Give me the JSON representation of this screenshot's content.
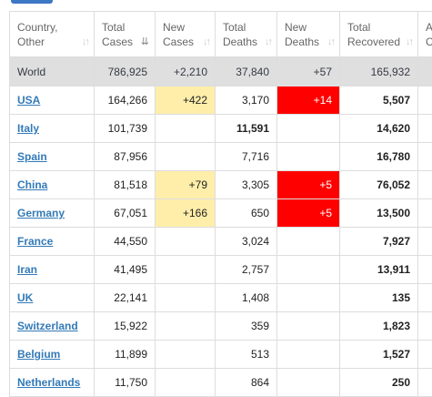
{
  "colors": {
    "new_cases_highlight": "#ffeeaa",
    "new_deaths_highlight": "#ff0000",
    "link": "#337ab7",
    "world_row_bg": "#dfdfdf"
  },
  "headers": {
    "country": [
      "Country,",
      "Other"
    ],
    "total_cases": [
      "Total",
      "Cases"
    ],
    "new_cases": [
      "New",
      "Cases"
    ],
    "total_deaths": [
      "Total",
      "Deaths"
    ],
    "new_deaths": [
      "New",
      "Deaths"
    ],
    "total_recovered": [
      "Total",
      "Recovered"
    ],
    "extra": [
      "A",
      "C"
    ]
  },
  "world": {
    "country": "World",
    "total_cases": "786,925",
    "new_cases": "+2,210",
    "total_deaths": "37,840",
    "new_deaths": "+57",
    "total_recovered": "165,932"
  },
  "rows": [
    {
      "country": "USA",
      "total_cases": "164,266",
      "new_cases": "+422",
      "total_deaths": "3,170",
      "new_deaths": "+14",
      "total_recovered": "5,507"
    },
    {
      "country": "Italy",
      "total_cases": "101,739",
      "new_cases": "",
      "total_deaths": "11,591",
      "new_deaths": "",
      "total_recovered": "14,620"
    },
    {
      "country": "Spain",
      "total_cases": "87,956",
      "new_cases": "",
      "total_deaths": "7,716",
      "new_deaths": "",
      "total_recovered": "16,780"
    },
    {
      "country": "China",
      "total_cases": "81,518",
      "new_cases": "+79",
      "total_deaths": "3,305",
      "new_deaths": "+5",
      "total_recovered": "76,052"
    },
    {
      "country": "Germany",
      "total_cases": "67,051",
      "new_cases": "+166",
      "total_deaths": "650",
      "new_deaths": "+5",
      "total_recovered": "13,500"
    },
    {
      "country": "France",
      "total_cases": "44,550",
      "new_cases": "",
      "total_deaths": "3,024",
      "new_deaths": "",
      "total_recovered": "7,927"
    },
    {
      "country": "Iran",
      "total_cases": "41,495",
      "new_cases": "",
      "total_deaths": "2,757",
      "new_deaths": "",
      "total_recovered": "13,911"
    },
    {
      "country": "UK",
      "total_cases": "22,141",
      "new_cases": "",
      "total_deaths": "1,408",
      "new_deaths": "",
      "total_recovered": "135"
    },
    {
      "country": "Switzerland",
      "total_cases": "15,922",
      "new_cases": "",
      "total_deaths": "359",
      "new_deaths": "",
      "total_recovered": "1,823"
    },
    {
      "country": "Belgium",
      "total_cases": "11,899",
      "new_cases": "",
      "total_deaths": "513",
      "new_deaths": "",
      "total_recovered": "1,527"
    },
    {
      "country": "Netherlands",
      "total_cases": "11,750",
      "new_cases": "",
      "total_deaths": "864",
      "new_deaths": "",
      "total_recovered": "250"
    }
  ]
}
